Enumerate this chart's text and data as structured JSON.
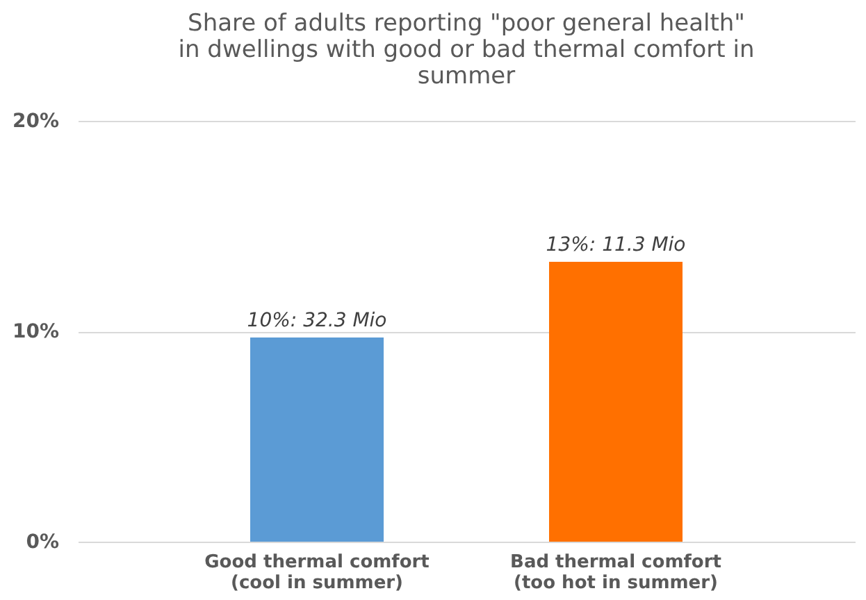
{
  "chart_data": {
    "type": "bar",
    "title": "Share of adults reporting \"poor general health\"\nin dwellings with good or bad thermal comfort in\nsummer",
    "categories": [
      "Good thermal comfort\n(cool in summer)",
      "Bad thermal comfort\n(too hot in summer)"
    ],
    "values": [
      9.7,
      13.3
    ],
    "colors": [
      "#5b9bd5",
      "#ff7000"
    ],
    "value_labels": [
      "10%: 32.3 Mio",
      "13%: 11.3 Mio"
    ],
    "ylim": [
      0,
      20
    ],
    "yticks": [
      {
        "value": 0,
        "label": "0%"
      },
      {
        "value": 10,
        "label": "10%"
      },
      {
        "value": 20,
        "label": "20%"
      }
    ],
    "grid": "y"
  }
}
